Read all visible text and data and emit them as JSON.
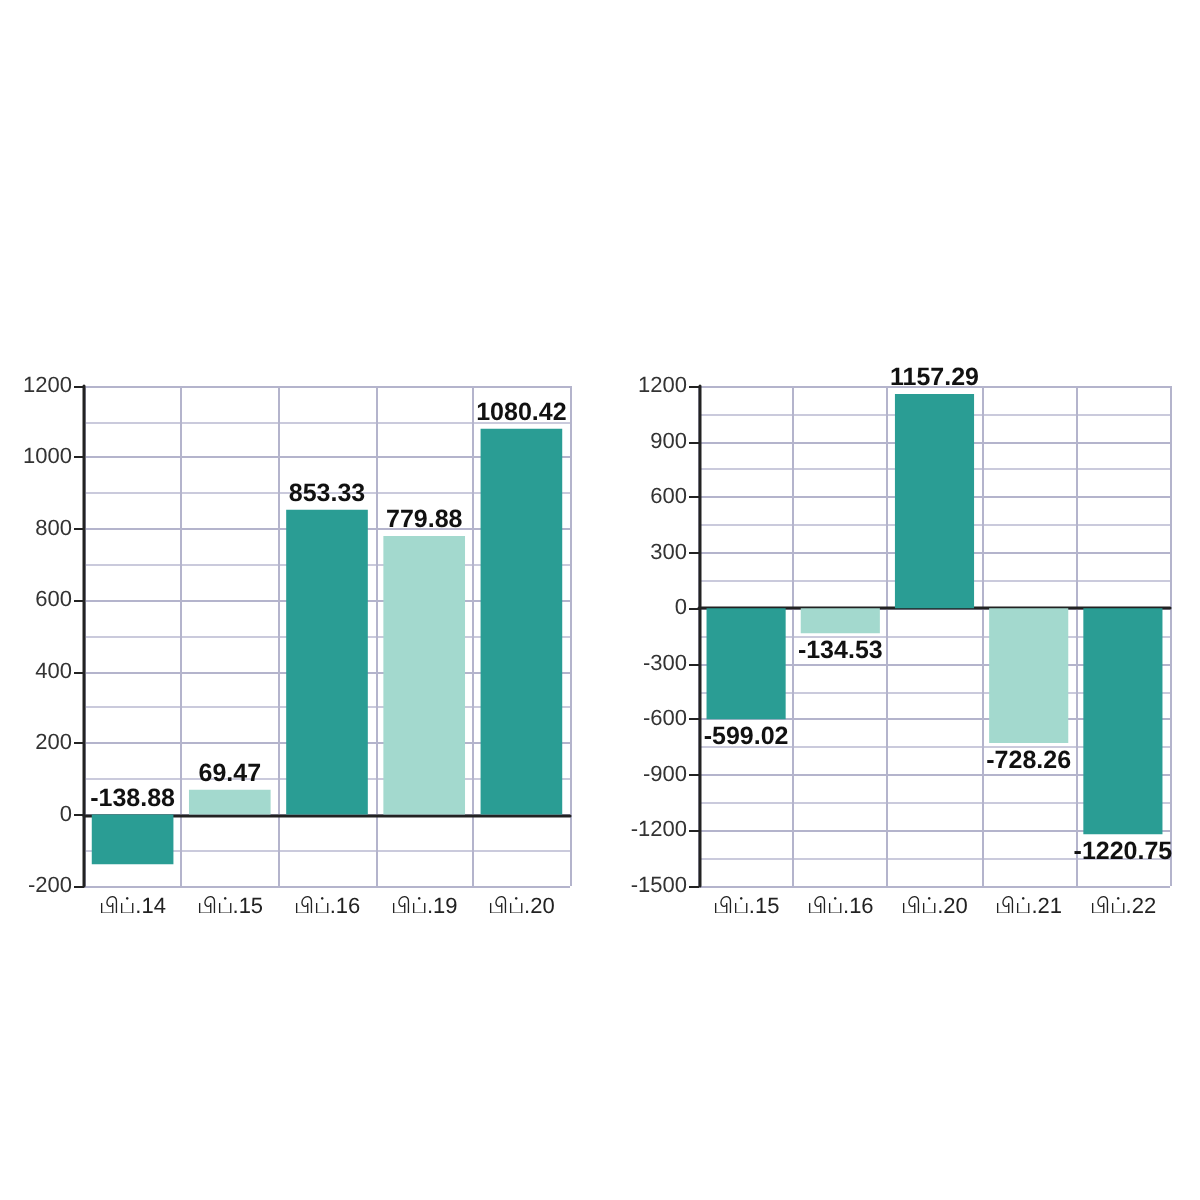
{
  "chart_data": [
    {
      "type": "bar",
      "categories": [
        "பிப்.14",
        "பிப்.15",
        "பிப்.16",
        "பிப்.19",
        "பிப்.20"
      ],
      "values": [
        -138.88,
        69.47,
        853.33,
        779.88,
        1080.42
      ],
      "colors": [
        "#2a9d94",
        "#a3d9ce",
        "#2a9d94",
        "#a3d9ce",
        "#2a9d94"
      ],
      "ylim": [
        -200,
        1200
      ],
      "yticks": [
        -200,
        0,
        200,
        400,
        600,
        800,
        1000,
        1200
      ],
      "grid": true,
      "data_labels": true
    },
    {
      "type": "bar",
      "categories": [
        "பிப்.15",
        "பிப்.16",
        "பிப்.20",
        "பிப்.21",
        "பிப்.22"
      ],
      "values": [
        -599.02,
        -134.53,
        1157.29,
        -728.26,
        -1220.75
      ],
      "colors": [
        "#2a9d94",
        "#a3d9ce",
        "#2a9d94",
        "#a3d9ce",
        "#2a9d94"
      ],
      "ylim": [
        -1500,
        1200
      ],
      "yticks": [
        -1500,
        -1200,
        -900,
        -600,
        -300,
        0,
        300,
        600,
        900,
        1200
      ],
      "grid": true,
      "data_labels": true
    }
  ]
}
